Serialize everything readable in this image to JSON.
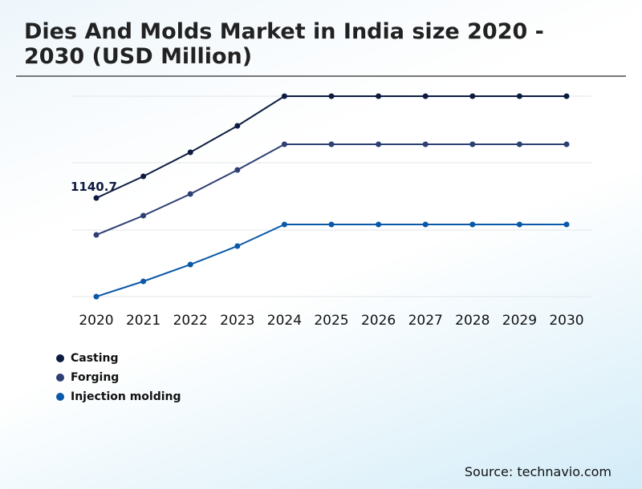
{
  "title": "Dies And Molds Market in India size 2020 - 2030 (USD Million)",
  "source": "Source: technavio.com",
  "chart_data": {
    "type": "line",
    "title": "Dies And Molds Market in India size 2020 - 2030 (USD Million)",
    "categories": [
      "2020",
      "2021",
      "2022",
      "2023",
      "2024",
      "2025",
      "2026",
      "2027",
      "2028",
      "2029",
      "2030"
    ],
    "series": [
      {
        "name": "Casting",
        "color": "#0d1b40",
        "values": [
          1140.7,
          1292.6,
          1461.2,
          1646.7,
          1854.6,
          1854.6,
          1854.6,
          1854.6,
          1854.6,
          1854.6,
          1854.6
        ]
      },
      {
        "name": "Forging",
        "color": "#2e3f73",
        "values": [
          882.3,
          1017.2,
          1169.0,
          1337.6,
          1517.4,
          1517.4,
          1517.4,
          1517.4,
          1517.4,
          1517.4,
          1517.4
        ]
      },
      {
        "name": "Injection molding",
        "color": "#0a58a8",
        "values": [
          449.6,
          556.4,
          674.4,
          803.7,
          955.4,
          955.4,
          955.4,
          955.4,
          955.4,
          955.4,
          955.4
        ]
      }
    ],
    "data_labels": [
      {
        "series": "Casting",
        "category": "2020",
        "text": "1140.7"
      }
    ],
    "grid": true,
    "legend": "bottom-left",
    "xlabel": "",
    "ylabel": ""
  }
}
